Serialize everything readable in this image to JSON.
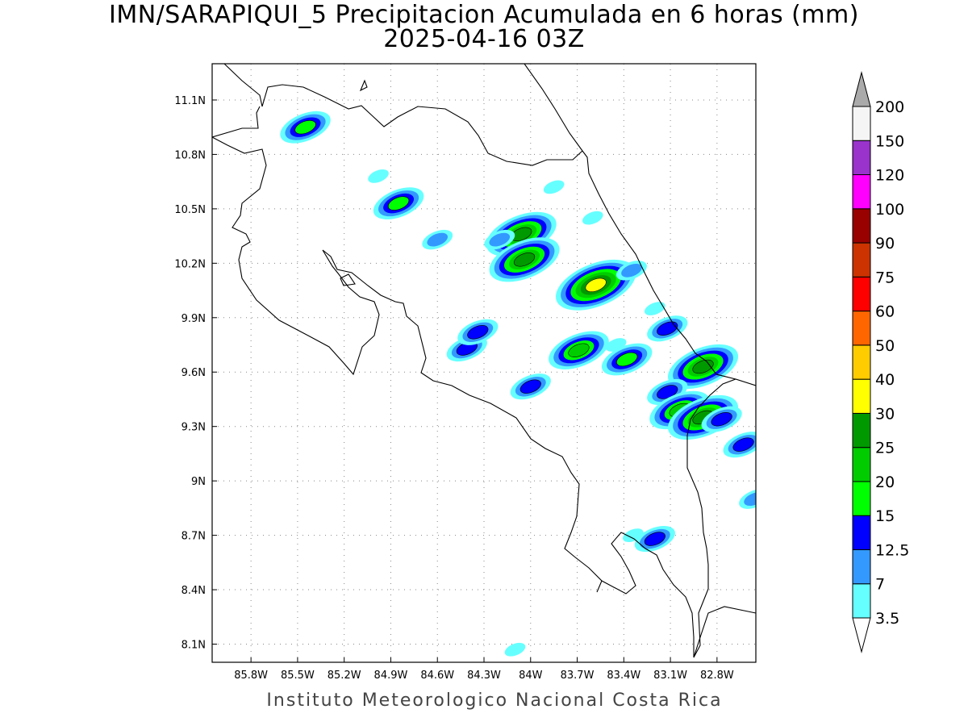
{
  "title": {
    "line1": "IMN/SARAPIQUI_5 Precipitacion Acumulada en 6 horas (mm)",
    "line2": "2025-04-16 03Z"
  },
  "footer": "Instituto Meteorologico Nacional Costa Rica",
  "map": {
    "lon_range": [
      -86.05,
      -82.55
    ],
    "lat_range": [
      8.0,
      11.3
    ],
    "lon_ticks": [
      "85.8W",
      "85.5W",
      "85.2W",
      "84.9W",
      "84.6W",
      "84.3W",
      "84W",
      "83.7W",
      "83.4W",
      "83.1W",
      "82.8W"
    ],
    "lat_ticks": [
      "11.1N",
      "10.8N",
      "10.5N",
      "10.2N",
      "9.9N",
      "9.6N",
      "9.3N",
      "9N",
      "8.7N",
      "8.4N",
      "8.1N"
    ],
    "grid": "dotted"
  },
  "colorbar": {
    "labels": [
      "3.5",
      "7",
      "12.5",
      "15",
      "20",
      "25",
      "30",
      "40",
      "50",
      "60",
      "75",
      "90",
      "100",
      "120",
      "150",
      "200"
    ],
    "colors": [
      "#ffffff",
      "#66ffff",
      "#3399ff",
      "#0000ff",
      "#00ff00",
      "#00cc00",
      "#009900",
      "#ffff00",
      "#ffcc00",
      "#ff6600",
      "#ff0000",
      "#cc3300",
      "#990000",
      "#ff00ff",
      "#9933cc",
      "#f5f5f5",
      "#aaaaaa"
    ]
  },
  "precip_cells": [
    {
      "lon": -85.45,
      "lat": 10.95,
      "level": 4
    },
    {
      "lon": -84.98,
      "lat": 10.68,
      "level": 1
    },
    {
      "lon": -84.85,
      "lat": 10.53,
      "level": 4
    },
    {
      "lon": -84.6,
      "lat": 10.33,
      "level": 2
    },
    {
      "lon": -84.06,
      "lat": 10.36,
      "level": 6
    },
    {
      "lon": -84.04,
      "lat": 10.22,
      "level": 6
    },
    {
      "lon": -84.2,
      "lat": 10.33,
      "level": 2
    },
    {
      "lon": -83.58,
      "lat": 10.08,
      "level": 7
    },
    {
      "lon": -83.35,
      "lat": 10.16,
      "level": 2
    },
    {
      "lon": -84.41,
      "lat": 9.73,
      "level": 3
    },
    {
      "lon": -84.34,
      "lat": 9.82,
      "level": 3
    },
    {
      "lon": -84.0,
      "lat": 9.52,
      "level": 3
    },
    {
      "lon": -83.69,
      "lat": 9.72,
      "level": 5
    },
    {
      "lon": -83.38,
      "lat": 9.67,
      "level": 4
    },
    {
      "lon": -83.12,
      "lat": 9.84,
      "level": 3
    },
    {
      "lon": -82.89,
      "lat": 9.63,
      "level": 6
    },
    {
      "lon": -83.12,
      "lat": 9.49,
      "level": 3
    },
    {
      "lon": -83.04,
      "lat": 9.39,
      "level": 5
    },
    {
      "lon": -82.89,
      "lat": 9.35,
      "level": 6
    },
    {
      "lon": -82.77,
      "lat": 9.34,
      "level": 3
    },
    {
      "lon": -82.63,
      "lat": 9.2,
      "level": 3
    },
    {
      "lon": -82.56,
      "lat": 8.9,
      "level": 2
    },
    {
      "lon": -83.2,
      "lat": 8.68,
      "level": 3
    },
    {
      "lon": -83.34,
      "lat": 8.7,
      "level": 1
    },
    {
      "lon": -84.1,
      "lat": 8.07,
      "level": 1
    },
    {
      "lon": -83.85,
      "lat": 10.62,
      "level": 1
    },
    {
      "lon": -83.6,
      "lat": 10.45,
      "level": 1
    },
    {
      "lon": -83.45,
      "lat": 9.75,
      "level": 1
    },
    {
      "lon": -83.2,
      "lat": 9.95,
      "level": 1
    }
  ]
}
